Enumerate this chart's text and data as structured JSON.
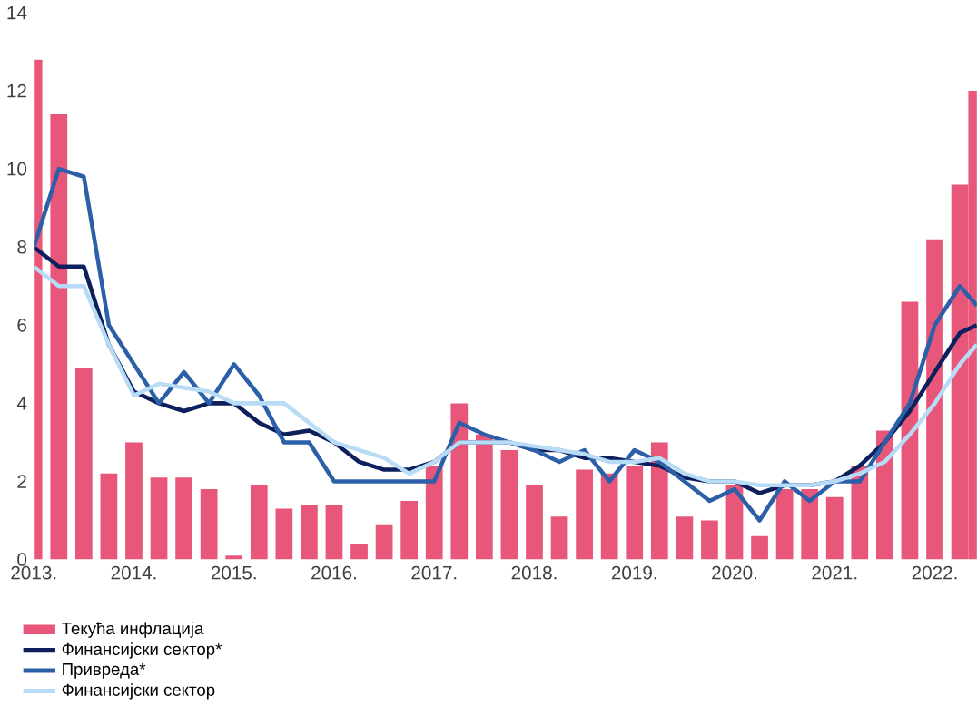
{
  "chart_data": {
    "type": "bar",
    "xlim": [
      "2013-01",
      "2022-06"
    ],
    "ylim": [
      0,
      14
    ],
    "yticks": [
      0,
      2,
      4,
      6,
      8,
      10,
      12,
      14
    ],
    "xticks": [
      {
        "value": "2013-01",
        "label": "2013."
      },
      {
        "value": "2014-01",
        "label": "2014."
      },
      {
        "value": "2015-01",
        "label": "2015."
      },
      {
        "value": "2016-01",
        "label": "2016."
      },
      {
        "value": "2017-01",
        "label": "2017."
      },
      {
        "value": "2018-01",
        "label": "2018."
      },
      {
        "value": "2019-01",
        "label": "2019."
      },
      {
        "value": "2020-01",
        "label": "2020."
      },
      {
        "value": "2021-01",
        "label": "2021."
      },
      {
        "value": "2022-01",
        "label": "2022."
      }
    ],
    "x": [
      "2013-01",
      "2013-04",
      "2013-07",
      "2013-10",
      "2014-01",
      "2014-04",
      "2014-07",
      "2014-10",
      "2015-01",
      "2015-04",
      "2015-07",
      "2015-10",
      "2016-01",
      "2016-04",
      "2016-07",
      "2016-10",
      "2017-01",
      "2017-04",
      "2017-07",
      "2017-10",
      "2018-01",
      "2018-04",
      "2018-07",
      "2018-10",
      "2019-01",
      "2019-04",
      "2019-07",
      "2019-10",
      "2020-01",
      "2020-04",
      "2020-07",
      "2020-10",
      "2021-01",
      "2021-04",
      "2021-07",
      "2021-10",
      "2022-01",
      "2022-04",
      "2022-06"
    ],
    "legend": "bottom left",
    "grid": false,
    "series": [
      {
        "name": "Текућа инфлација",
        "color": "#e8577a",
        "values": [
          12.8,
          11.4,
          4.9,
          2.2,
          3.0,
          2.1,
          2.1,
          1.8,
          0.1,
          1.9,
          1.3,
          1.4,
          1.4,
          0.4,
          0.9,
          1.5,
          2.4,
          4.0,
          3.2,
          2.8,
          1.9,
          1.1,
          2.3,
          2.2,
          2.4,
          3.0,
          1.1,
          1.0,
          1.9,
          0.6,
          1.8,
          1.8,
          1.6,
          2.4,
          3.3,
          6.6,
          8.2,
          9.6,
          12.0
        ]
      },
      {
        "name": "Финансијски сектор*",
        "type": "line",
        "color": "#0d1f5c",
        "values": [
          8.0,
          7.5,
          7.5,
          5.5,
          4.3,
          4.0,
          3.8,
          4.0,
          4.0,
          3.5,
          3.2,
          3.3,
          3.0,
          2.5,
          2.3,
          2.3,
          2.5,
          3.0,
          3.0,
          3.0,
          2.8,
          2.8,
          2.6,
          2.6,
          2.5,
          2.4,
          2.1,
          2.0,
          2.0,
          1.7,
          1.9,
          1.9,
          2.0,
          2.4,
          3.0,
          3.8,
          4.8,
          5.8,
          6.0
        ]
      },
      {
        "name": "Привреда*",
        "type": "line",
        "color": "#2b5fa8",
        "values": [
          8.0,
          10.0,
          9.8,
          6.0,
          5.0,
          4.0,
          4.8,
          4.0,
          5.0,
          4.2,
          3.0,
          3.0,
          2.0,
          2.0,
          2.0,
          2.0,
          2.0,
          3.5,
          3.2,
          3.0,
          2.8,
          2.5,
          2.8,
          2.0,
          2.8,
          2.5,
          2.0,
          1.5,
          1.8,
          1.0,
          2.0,
          1.5,
          2.0,
          2.0,
          3.0,
          4.0,
          6.0,
          7.0,
          6.5
        ]
      },
      {
        "name": "Финансијски сектор",
        "type": "line",
        "color": "#b8dcf5",
        "values": [
          7.5,
          7.0,
          7.0,
          5.5,
          4.2,
          4.5,
          4.4,
          4.3,
          4.0,
          4.0,
          4.0,
          3.5,
          3.0,
          2.8,
          2.6,
          2.2,
          2.5,
          3.0,
          3.0,
          3.0,
          2.9,
          2.8,
          2.7,
          2.5,
          2.5,
          2.6,
          2.2,
          2.0,
          2.0,
          1.9,
          1.9,
          1.9,
          2.0,
          2.2,
          2.5,
          3.2,
          4.0,
          5.0,
          5.5
        ]
      }
    ]
  }
}
